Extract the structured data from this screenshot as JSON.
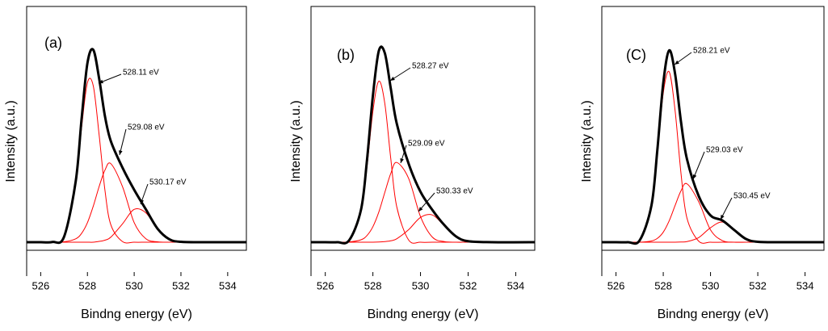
{
  "chart_data": [
    {
      "type": "line",
      "panel_label": "(a)",
      "x_label": "Bindng energy (eV)",
      "y_label": "Intensity (a.u.)",
      "xlim": [
        525.4,
        534.8
      ],
      "ylim": [
        -4,
        117
      ],
      "xticks": [
        526,
        528,
        530,
        532,
        534
      ],
      "annotations": [
        "528.11 eV",
        "529.08 eV",
        "530.17 eV"
      ],
      "x": [
        525,
        526,
        526.5,
        527,
        527.5,
        527.75,
        528,
        528.25,
        528.5,
        528.75,
        529,
        529.5,
        530,
        530.5,
        531,
        531.5,
        532,
        533,
        535
      ],
      "series": [
        {
          "color": "#000000",
          "values": [
            0,
            0,
            0.1,
            2.7,
            30.3,
            61.2,
            88.9,
            95.5,
            81.3,
            62.5,
            50.2,
            37.0,
            26.0,
            16.3,
            6.7,
            1.5,
            0.2,
            0,
            0
          ]
        },
        {
          "color": "#ff0000",
          "values": [
            0,
            0,
            0.1,
            2.5,
            28.6,
            56.8,
            79.2,
            77.6,
            53.3,
            25.7,
            8.7,
            0.3,
            0,
            0,
            0,
            0,
            0,
            0,
            0
          ]
        },
        {
          "color": "#ff0000",
          "values": [
            0,
            0,
            0,
            0.2,
            1.7,
            4.4,
            9.7,
            17.9,
            27.6,
            35.8,
            39,
            27.6,
            9.7,
            1.7,
            0.2,
            0,
            0,
            0,
            0
          ]
        },
        {
          "color": "#ff0000",
          "values": [
            0,
            0,
            0,
            0,
            0,
            0,
            0,
            0,
            0.4,
            1.0,
            2.5,
            9.1,
            16.3,
            14.6,
            6.5,
            1.5,
            0.2,
            0,
            0
          ]
        }
      ]
    },
    {
      "type": "line",
      "panel_label": "(b)",
      "x_label": "Bindng energy (eV)",
      "y_label": "Intensity (a.u.)",
      "xlim": [
        525.4,
        534.8
      ],
      "ylim": [
        -4,
        117
      ],
      "xticks": [
        526,
        528,
        530,
        532,
        534
      ],
      "annotations": [
        "528.27 eV",
        "529.09 eV",
        "530.33 eV"
      ],
      "x": [
        525,
        526,
        526.5,
        527,
        527.5,
        527.75,
        528,
        528.25,
        528.5,
        528.75,
        529,
        529.5,
        530,
        530.5,
        531,
        531.5,
        532,
        533,
        535
      ],
      "series": [
        {
          "color": "#000000",
          "values": [
            0,
            0,
            0,
            0.9,
            16.1,
            40.5,
            72.7,
            95.0,
            93.9,
            76.4,
            59.0,
            39.0,
            25.0,
            16.0,
            8.5,
            2.8,
            0.5,
            0,
            0
          ]
        },
        {
          "color": "#ff0000",
          "values": [
            0,
            0,
            0,
            0.8,
            14.9,
            37.2,
            65.0,
            79.9,
            68.9,
            41.6,
            17.7,
            1.1,
            0,
            0,
            0,
            0,
            0,
            0,
            0
          ]
        },
        {
          "color": "#ff0000",
          "values": [
            0,
            0,
            0,
            0.1,
            1.2,
            3.3,
            7.7,
            15.0,
            24.7,
            34.1,
            39.6,
            31.7,
            12.7,
            2.5,
            0.3,
            0,
            0,
            0,
            0
          ]
        },
        {
          "color": "#ff0000",
          "values": [
            0,
            0,
            0,
            0,
            0,
            0,
            0,
            0.1,
            0.3,
            0.7,
            1.7,
            6.2,
            12.3,
            13.5,
            8.2,
            2.8,
            0.5,
            0,
            0
          ]
        }
      ]
    },
    {
      "type": "line",
      "panel_label": "(C)",
      "x_label": "Bindng energy (eV)",
      "y_label": "Intensity (a.u.)",
      "xlim": [
        525.4,
        534.8
      ],
      "ylim": [
        -4,
        117
      ],
      "xticks": [
        526,
        528,
        530,
        532,
        534
      ],
      "annotations": [
        "528.21 eV",
        "529.03 eV",
        "530.45 eV"
      ],
      "x": [
        525,
        526,
        526.5,
        527,
        527.5,
        527.75,
        528,
        528.25,
        528.5,
        528.75,
        529,
        529.5,
        530,
        530.5,
        531,
        531.5,
        532,
        533,
        535
      ],
      "series": [
        {
          "color": "#000000",
          "values": [
            0,
            0,
            0,
            0.9,
            18.2,
            45.8,
            79.0,
            95.2,
            83.6,
            59.8,
            41.4,
            22.9,
            13.3,
            10.8,
            6.1,
            1.6,
            0.2,
            0,
            0
          ]
        },
        {
          "color": "#ff0000",
          "values": [
            0,
            0,
            0,
            0.9,
            17.6,
            43.9,
            74.0,
            84.6,
            65.4,
            34.2,
            12.1,
            0.5,
            0,
            0,
            0,
            0,
            0,
            0,
            0
          ]
        },
        {
          "color": "#ff0000",
          "values": [
            0,
            0,
            0,
            0,
            0.6,
            1.9,
            5.0,
            10.6,
            18.2,
            25.5,
            29.0,
            20.1,
            6.1,
            0.8,
            0,
            0,
            0,
            0,
            0
          ]
        },
        {
          "color": "#ff0000",
          "values": [
            0,
            0,
            0,
            0,
            0,
            0,
            0,
            0,
            0,
            0.1,
            0.3,
            2.3,
            7.2,
            10.0,
            6.1,
            1.6,
            0.2,
            0,
            0
          ]
        }
      ]
    }
  ]
}
